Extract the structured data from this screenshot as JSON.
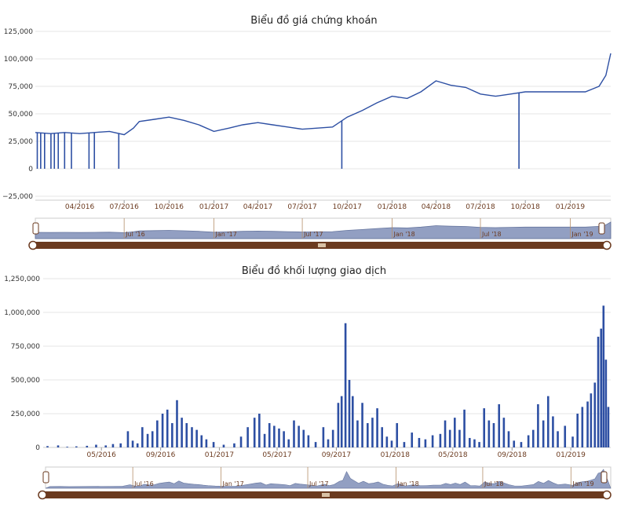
{
  "chart_data": [
    {
      "type": "line",
      "title": "Biểu đồ giá chứng khoán",
      "ylim": [
        -25000,
        125000
      ],
      "yticks": [
        "125,000",
        "100,000",
        "75,000",
        "50,000",
        "25,000",
        "0",
        "−25,000"
      ],
      "ytick_values": [
        125000,
        100000,
        75000,
        50000,
        25000,
        0,
        -25000
      ],
      "xticks": [
        "04/2016",
        "07/2016",
        "10/2016",
        "01/2017",
        "04/2017",
        "07/2017",
        "10/2017",
        "01/2018",
        "04/2018",
        "07/2018",
        "10/2018",
        "01/2019"
      ],
      "xtick_dates": [
        "2016-04-01",
        "2016-07-01",
        "2016-10-01",
        "2017-01-01",
        "2017-04-01",
        "2017-07-01",
        "2017-10-01",
        "2018-01-01",
        "2018-04-01",
        "2018-07-01",
        "2018-10-01",
        "2019-01-01"
      ],
      "x_range": [
        "2016-01-01",
        "2019-03-25"
      ],
      "grid": true,
      "series": [
        {
          "color": "#2d4fa3",
          "x": [
            "2016-01-01",
            "2016-02-01",
            "2016-03-01",
            "2016-04-01",
            "2016-05-01",
            "2016-06-01",
            "2016-07-01",
            "2016-07-20",
            "2016-08-01",
            "2016-09-01",
            "2016-10-01",
            "2016-11-01",
            "2016-12-01",
            "2017-01-01",
            "2017-02-01",
            "2017-03-01",
            "2017-04-01",
            "2017-05-01",
            "2017-06-01",
            "2017-07-01",
            "2017-08-01",
            "2017-09-01",
            "2017-10-01",
            "2017-11-01",
            "2017-12-01",
            "2018-01-01",
            "2018-02-01",
            "2018-03-01",
            "2018-04-01",
            "2018-05-01",
            "2018-06-01",
            "2018-07-01",
            "2018-08-01",
            "2018-09-01",
            "2018-10-01",
            "2018-11-01",
            "2018-12-01",
            "2019-01-01",
            "2019-02-01",
            "2019-03-01",
            "2019-03-15",
            "2019-03-25"
          ],
          "values": [
            33000,
            32000,
            33000,
            32000,
            33000,
            34000,
            31000,
            37000,
            43000,
            45000,
            47000,
            44000,
            40000,
            34000,
            37000,
            40000,
            42000,
            40000,
            38000,
            36000,
            37000,
            38000,
            47000,
            53000,
            60000,
            66000,
            64000,
            70000,
            80000,
            76000,
            74000,
            68000,
            66000,
            68000,
            70000,
            70000,
            70000,
            70000,
            70000,
            75000,
            85000,
            105000
          ],
          "drops_to_zero": [
            "2016-01-05",
            "2016-01-12",
            "2016-01-20",
            "2016-02-02",
            "2016-02-09",
            "2016-02-17",
            "2016-03-01",
            "2016-03-15",
            "2016-04-20",
            "2016-05-01",
            "2016-06-20",
            "2017-09-20",
            "2018-09-18"
          ]
        }
      ]
    },
    {
      "type": "bar",
      "title": "Biểu đồ khối lượng giao dịch",
      "ylim": [
        0,
        1250000
      ],
      "yticks": [
        "1,250,000",
        "1,000,000",
        "750,000",
        "500,000",
        "250,000",
        "0"
      ],
      "ytick_values": [
        1250000,
        1000000,
        750000,
        500000,
        250000,
        0
      ],
      "xticks": [
        "05/2016",
        "09/2016",
        "01/2017",
        "05/2017",
        "09/2017",
        "01/2018",
        "05/2018",
        "09/2018",
        "01/2019"
      ],
      "xtick_dates": [
        "2016-05-01",
        "2016-09-01",
        "2017-01-01",
        "2017-05-01",
        "2017-09-01",
        "2018-01-01",
        "2018-05-01",
        "2018-09-01",
        "2019-01-01"
      ],
      "x_range": [
        "2016-01-01",
        "2019-03-25"
      ],
      "grid": true,
      "series": [
        {
          "color": "#2d4fa3",
          "x": [
            "2016-01-10",
            "2016-02-01",
            "2016-02-20",
            "2016-03-10",
            "2016-04-01",
            "2016-04-20",
            "2016-05-10",
            "2016-05-25",
            "2016-06-10",
            "2016-06-25",
            "2016-07-05",
            "2016-07-15",
            "2016-07-25",
            "2016-08-05",
            "2016-08-15",
            "2016-08-25",
            "2016-09-05",
            "2016-09-15",
            "2016-09-25",
            "2016-10-05",
            "2016-10-15",
            "2016-10-25",
            "2016-11-05",
            "2016-11-15",
            "2016-11-25",
            "2016-12-05",
            "2016-12-20",
            "2017-01-10",
            "2017-02-01",
            "2017-02-15",
            "2017-03-01",
            "2017-03-15",
            "2017-03-25",
            "2017-04-05",
            "2017-04-15",
            "2017-04-25",
            "2017-05-05",
            "2017-05-15",
            "2017-05-25",
            "2017-06-05",
            "2017-06-15",
            "2017-06-25",
            "2017-07-05",
            "2017-07-20",
            "2017-08-05",
            "2017-08-15",
            "2017-08-25",
            "2017-09-05",
            "2017-09-12",
            "2017-09-20",
            "2017-09-28",
            "2017-10-05",
            "2017-10-15",
            "2017-10-25",
            "2017-11-05",
            "2017-11-15",
            "2017-11-25",
            "2017-12-05",
            "2017-12-15",
            "2017-12-25",
            "2018-01-05",
            "2018-01-20",
            "2018-02-05",
            "2018-02-20",
            "2018-03-05",
            "2018-03-20",
            "2018-04-05",
            "2018-04-15",
            "2018-04-25",
            "2018-05-05",
            "2018-05-15",
            "2018-05-25",
            "2018-06-05",
            "2018-06-15",
            "2018-06-25",
            "2018-07-05",
            "2018-07-15",
            "2018-07-25",
            "2018-08-05",
            "2018-08-15",
            "2018-08-25",
            "2018-09-05",
            "2018-09-20",
            "2018-10-05",
            "2018-10-15",
            "2018-10-25",
            "2018-11-05",
            "2018-11-15",
            "2018-11-25",
            "2018-12-05",
            "2018-12-20",
            "2019-01-05",
            "2019-01-15",
            "2019-01-25",
            "2019-02-05",
            "2019-02-12",
            "2019-02-20",
            "2019-02-27",
            "2019-03-05",
            "2019-03-10",
            "2019-03-15",
            "2019-03-20"
          ],
          "values": [
            10000,
            15000,
            5000,
            8000,
            12000,
            20000,
            15000,
            25000,
            30000,
            120000,
            50000,
            30000,
            150000,
            100000,
            120000,
            200000,
            250000,
            280000,
            180000,
            350000,
            220000,
            180000,
            150000,
            130000,
            90000,
            60000,
            40000,
            20000,
            30000,
            80000,
            150000,
            220000,
            250000,
            100000,
            180000,
            160000,
            140000,
            120000,
            60000,
            200000,
            160000,
            130000,
            90000,
            40000,
            150000,
            60000,
            130000,
            330000,
            380000,
            920000,
            500000,
            380000,
            200000,
            330000,
            180000,
            220000,
            290000,
            150000,
            80000,
            50000,
            180000,
            40000,
            110000,
            70000,
            60000,
            90000,
            100000,
            200000,
            130000,
            220000,
            130000,
            280000,
            70000,
            60000,
            40000,
            290000,
            200000,
            180000,
            320000,
            220000,
            120000,
            50000,
            40000,
            90000,
            130000,
            320000,
            200000,
            380000,
            230000,
            120000,
            160000,
            80000,
            250000,
            300000,
            340000,
            400000,
            480000,
            820000,
            880000,
            1050000,
            650000,
            300000
          ]
        }
      ]
    }
  ],
  "navigator": {
    "price_labels": [
      "Jul '16",
      "Jan '17",
      "Jul '17",
      "Jan '18",
      "Jul '18",
      "Jan '19"
    ],
    "volume_labels": [
      "Jul '16",
      "Jan '17",
      "Jul '17",
      "Jan '18",
      "Jul '18",
      "Jan '19"
    ]
  },
  "colors": {
    "line": "#2d4fa3",
    "bar": "#2d4fa3",
    "navigator_fill": "#7f8fb8",
    "scrollbar": "#6b3a1f",
    "grid": "#e6e6e6",
    "axis_label": "#6b3a1f"
  }
}
